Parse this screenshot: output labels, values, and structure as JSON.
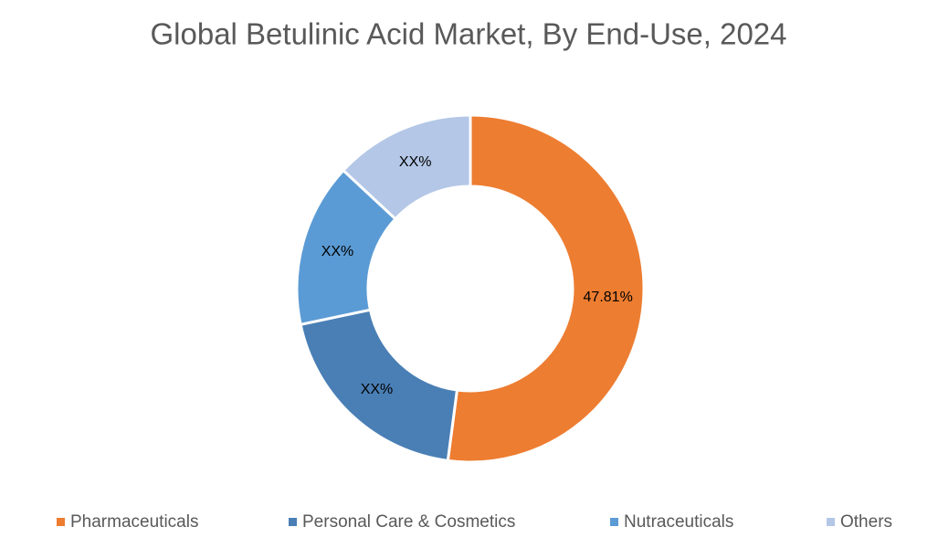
{
  "chart_data": {
    "type": "donut",
    "title": "Global Betulinic Acid Market, By End-Use, 2024",
    "categories": [
      "Pharmaceuticals",
      "Personal Care & Cosmetics",
      "Nutraceuticals",
      "Others"
    ],
    "values": [
      47.81,
      18,
      14,
      12
    ],
    "value_labels": [
      "47.81%",
      "XX%",
      "XX%",
      "XX%"
    ],
    "colors": [
      "#ed7d31",
      "#4a7fb5",
      "#5b9bd5",
      "#b4c7e7"
    ],
    "legend": "bottom"
  }
}
